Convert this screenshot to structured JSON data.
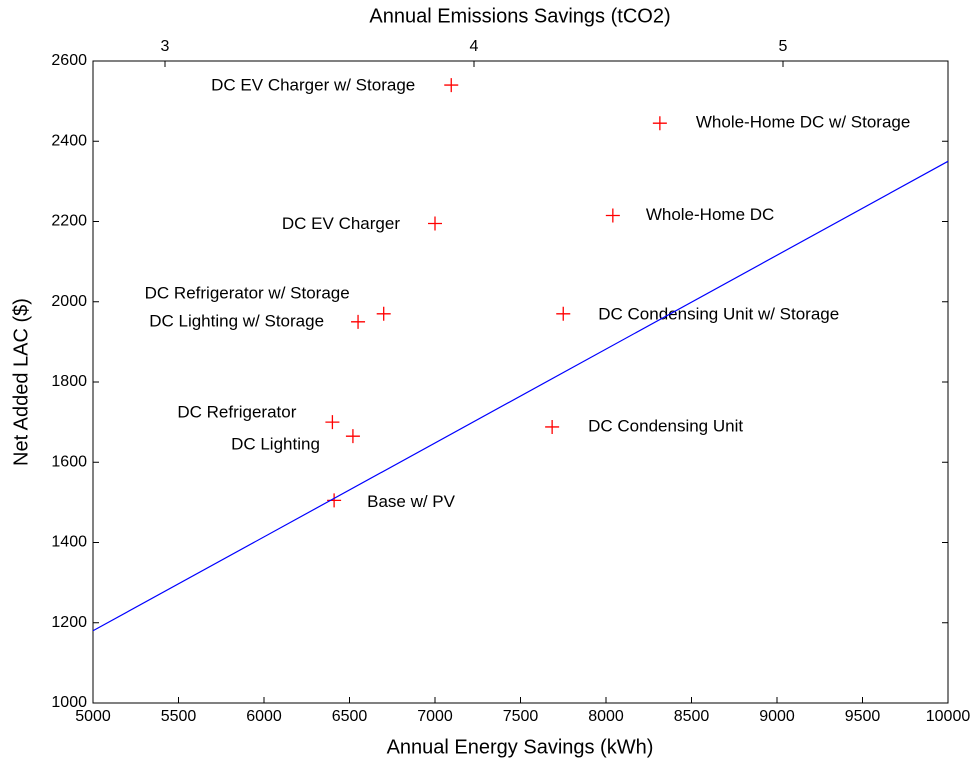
{
  "chart_data": {
    "type": "scatter",
    "x_label": "Annual Energy Savings (kWh)",
    "y_label": "Net Added LAC ($)",
    "x2_label": "Annual Emissions Savings (tCO2)",
    "xlim": [
      5000,
      10000
    ],
    "xticks": [
      5000,
      5500,
      6000,
      6500,
      7000,
      7500,
      8000,
      8500,
      9000,
      9500,
      10000
    ],
    "ylim": [
      1000,
      2600
    ],
    "yticks": [
      1000,
      1200,
      1400,
      1600,
      1800,
      2000,
      2200,
      2400,
      2600
    ],
    "x2lim": [
      2.767,
      5.534
    ],
    "x2ticks": [
      3,
      4,
      5
    ],
    "series": [
      {
        "type": "scatter",
        "color": "#ff0000",
        "x": [
          6410,
          6520,
          6400,
          6550,
          6700,
          7000,
          7095,
          7685,
          7750,
          8040,
          8315
        ],
        "values": [
          1505,
          1665,
          1700,
          1950,
          1970,
          2195,
          2540,
          1688,
          1970,
          2215,
          2445
        ],
        "labels": [
          "Base w/ PV",
          "DC Lighting",
          "DC Refrigerator",
          "DC Lighting w/ Storage",
          "DC Refrigerator w/ Storage",
          "DC EV Charger",
          "DC EV Charger w/ Storage",
          "DC Condensing Unit",
          "DC Condensing Unit w/ Storage",
          "Whole-Home DC",
          "Whole-Home DC w/ Storage"
        ]
      },
      {
        "type": "line",
        "color": "#0000ff",
        "x": [
          5000,
          10000
        ],
        "values": [
          1180,
          2350
        ]
      }
    ]
  }
}
